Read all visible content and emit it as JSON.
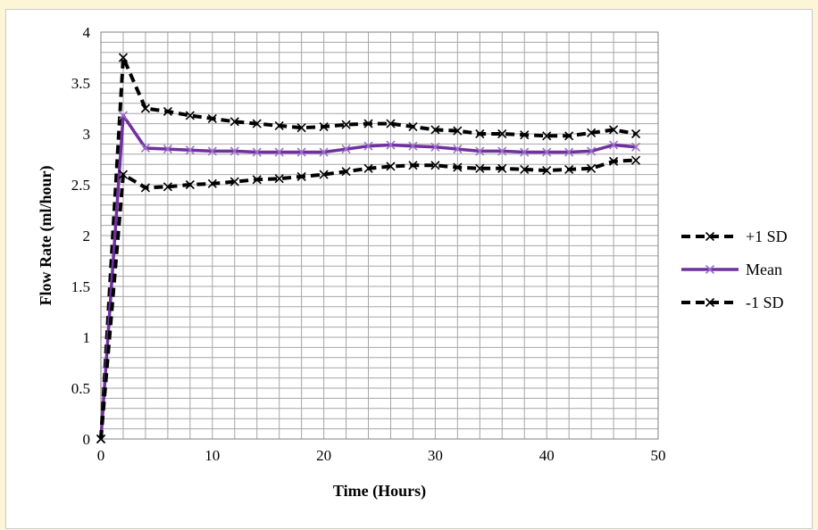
{
  "chart_data": {
    "type": "line",
    "title": "",
    "xlabel": "Time (Hours)",
    "ylabel": "Flow Rate (ml/hour)",
    "xlim": [
      0,
      50
    ],
    "ylim": [
      0,
      4
    ],
    "x_ticks": [
      0,
      10,
      20,
      30,
      40,
      50
    ],
    "y_ticks": [
      0,
      0.5,
      1,
      1.5,
      2,
      2.5,
      3,
      3.5,
      4
    ],
    "x_ticks_labels": [
      "0",
      "10",
      "20",
      "30",
      "40",
      "50"
    ],
    "y_ticks_labels": [
      "0",
      "0.5",
      "1",
      "1.5",
      "2",
      "2.5",
      "3",
      "3.5",
      "4"
    ],
    "grid": true,
    "legend_position": "right",
    "x": [
      0,
      2,
      4,
      6,
      8,
      10,
      12,
      14,
      16,
      18,
      20,
      22,
      24,
      26,
      28,
      30,
      32,
      34,
      36,
      38,
      40,
      42,
      44,
      46,
      48
    ],
    "series": [
      {
        "name": "+1 SD",
        "color": "#000000",
        "style": "dashed",
        "values": [
          0,
          3.75,
          3.25,
          3.22,
          3.18,
          3.15,
          3.12,
          3.1,
          3.08,
          3.06,
          3.07,
          3.09,
          3.1,
          3.1,
          3.07,
          3.04,
          3.03,
          3.0,
          3.0,
          2.99,
          2.98,
          2.98,
          3.01,
          3.04,
          3.0
        ]
      },
      {
        "name": "Mean",
        "color": "#7030a0",
        "style": "solid",
        "values": [
          0,
          3.18,
          2.86,
          2.85,
          2.84,
          2.83,
          2.83,
          2.82,
          2.82,
          2.82,
          2.82,
          2.85,
          2.88,
          2.89,
          2.88,
          2.87,
          2.85,
          2.83,
          2.83,
          2.82,
          2.82,
          2.82,
          2.83,
          2.89,
          2.87
        ]
      },
      {
        "name": "-1 SD",
        "color": "#000000",
        "style": "dashed",
        "values": [
          0,
          2.6,
          2.47,
          2.48,
          2.5,
          2.51,
          2.53,
          2.55,
          2.56,
          2.58,
          2.6,
          2.63,
          2.66,
          2.68,
          2.69,
          2.69,
          2.67,
          2.66,
          2.66,
          2.65,
          2.64,
          2.65,
          2.66,
          2.73,
          2.74
        ]
      }
    ]
  }
}
